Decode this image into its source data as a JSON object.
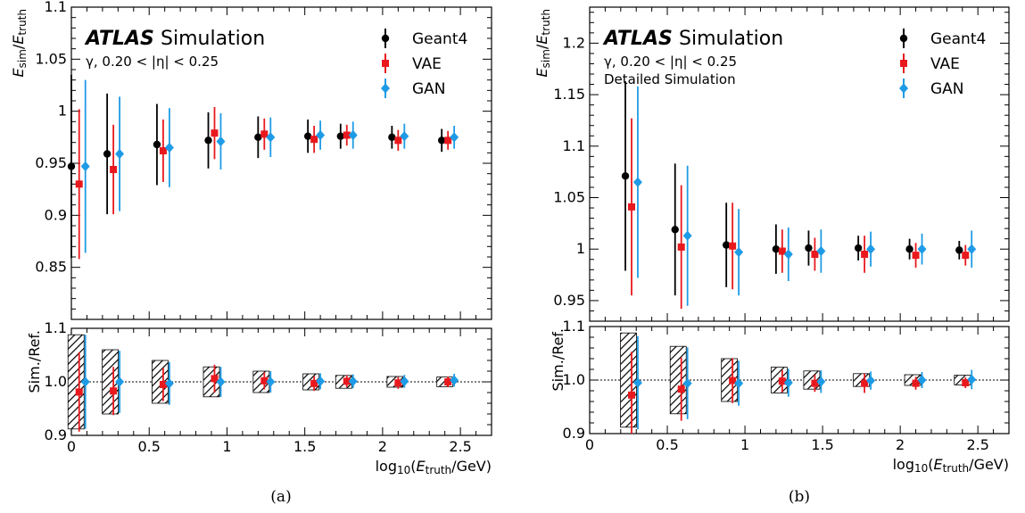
{
  "chart_data": [
    {
      "type": "scatter",
      "panel_label": "(a)",
      "atlas_label": "ATLAS",
      "atlas_suffix": "Simulation",
      "info_lines": [
        "γ, 0.20 < |η| < 0.25"
      ],
      "ylabel": "E_sim/E_truth",
      "ratio_ylabel": "Sim./Ref.",
      "xlabel": "log10(E_truth/GeV)",
      "xlim": [
        0,
        2.7
      ],
      "ylim": [
        0.8,
        1.1
      ],
      "ratio_ylim": [
        0.9,
        1.1
      ],
      "xticks": [
        0,
        0.5,
        1,
        1.5,
        2,
        2.5
      ],
      "xtick_labels": [
        "0",
        "0.5",
        "1",
        "1.5",
        "2",
        "2.5"
      ],
      "yticks": [
        0.85,
        0.9,
        0.95,
        1,
        1.05,
        1.1
      ],
      "ytick_labels": [
        "0.85",
        "0.9",
        "0.95",
        "1",
        "1.05",
        "1.1"
      ],
      "ratio_yticks": [
        0.9,
        1.0,
        1.1
      ],
      "ratio_ytick_labels": [
        "0.9",
        "1.0",
        "1.1"
      ],
      "legend_position": "top-right",
      "series": [
        {
          "name": "Geant4",
          "color": "#000000",
          "marker": "circle",
          "x": [
            0.0,
            0.23,
            0.55,
            0.88,
            1.2,
            1.52,
            1.73,
            2.06,
            2.38
          ],
          "y": [
            0.947,
            0.959,
            0.968,
            0.972,
            0.975,
            0.976,
            0.976,
            0.975,
            0.972
          ],
          "err": [
            0.088,
            0.058,
            0.039,
            0.027,
            0.02,
            0.016,
            0.012,
            0.011,
            0.011
          ]
        },
        {
          "name": "VAE",
          "color": "#e8191e",
          "marker": "square",
          "x": [
            0.05,
            0.27,
            0.59,
            0.92,
            1.24,
            1.56,
            1.77,
            2.1,
            2.42
          ],
          "y": [
            0.93,
            0.944,
            0.962,
            0.979,
            0.978,
            0.973,
            0.977,
            0.972,
            0.972
          ],
          "err": [
            0.072,
            0.043,
            0.03,
            0.025,
            0.015,
            0.013,
            0.01,
            0.01,
            0.009
          ]
        },
        {
          "name": "GAN",
          "color": "#1e9be6",
          "marker": "diamond",
          "x": [
            0.09,
            0.31,
            0.63,
            0.96,
            1.28,
            1.6,
            1.81,
            2.14,
            2.46
          ],
          "y": [
            0.947,
            0.959,
            0.965,
            0.971,
            0.975,
            0.977,
            0.977,
            0.976,
            0.975
          ],
          "err": [
            0.083,
            0.055,
            0.038,
            0.027,
            0.019,
            0.014,
            0.013,
            0.012,
            0.011
          ]
        }
      ],
      "ratio_bands": [
        {
          "x": 0.03,
          "lo": 0.912,
          "hi": 1.088
        },
        {
          "x": 0.25,
          "lo": 0.94,
          "hi": 1.06
        },
        {
          "x": 0.57,
          "lo": 0.96,
          "hi": 1.04
        },
        {
          "x": 0.9,
          "lo": 0.972,
          "hi": 1.028
        },
        {
          "x": 1.22,
          "lo": 0.98,
          "hi": 1.02
        },
        {
          "x": 1.54,
          "lo": 0.985,
          "hi": 1.015
        },
        {
          "x": 1.75,
          "lo": 0.988,
          "hi": 1.012
        },
        {
          "x": 2.08,
          "lo": 0.99,
          "hi": 1.01
        },
        {
          "x": 2.4,
          "lo": 0.991,
          "hi": 1.009
        }
      ],
      "ratio_series": [
        {
          "name": "VAE",
          "x": [
            0.05,
            0.27,
            0.59,
            0.92,
            1.24,
            1.56,
            1.77,
            2.1,
            2.42
          ],
          "y": [
            0.981,
            0.983,
            0.995,
            1.006,
            1.002,
            0.997,
            1.001,
            0.998,
            1.0
          ],
          "err": [
            0.074,
            0.045,
            0.031,
            0.026,
            0.016,
            0.014,
            0.011,
            0.011,
            0.01
          ]
        },
        {
          "name": "GAN",
          "x": [
            0.09,
            0.31,
            0.63,
            0.96,
            1.28,
            1.6,
            1.81,
            2.14,
            2.46
          ],
          "y": [
            1.0,
            1.0,
            0.997,
            1.0,
            1.0,
            1.001,
            1.001,
            1.001,
            1.003
          ],
          "err": [
            0.088,
            0.058,
            0.04,
            0.028,
            0.02,
            0.015,
            0.013,
            0.012,
            0.012
          ]
        }
      ]
    },
    {
      "type": "scatter",
      "panel_label": "(b)",
      "atlas_label": "ATLAS",
      "atlas_suffix": "Simulation",
      "info_lines": [
        "γ, 0.20 < |η| < 0.25",
        "Detailed Simulation"
      ],
      "ylabel": "E_sim/E_truth",
      "ratio_ylabel": "Sim./Ref.",
      "xlabel": "log10(E_truth/GeV)",
      "xlim": [
        0,
        2.7
      ],
      "ylim": [
        0.93,
        1.235
      ],
      "ratio_ylim": [
        0.9,
        1.1
      ],
      "xticks": [
        0,
        0.5,
        1,
        1.5,
        2,
        2.5
      ],
      "xtick_labels": [
        "0",
        "0.5",
        "1",
        "1.5",
        "2",
        "2.5"
      ],
      "yticks": [
        0.95,
        1,
        1.05,
        1.1,
        1.15,
        1.2
      ],
      "ytick_labels": [
        "0.95",
        "1",
        "1.05",
        "1.1",
        "1.15",
        "1.2"
      ],
      "ratio_yticks": [
        0.9,
        1.0,
        1.1
      ],
      "ratio_ytick_labels": [
        "0.9",
        "1.0",
        "1.1"
      ],
      "legend_position": "top-right",
      "series": [
        {
          "name": "Geant4",
          "color": "#000000",
          "marker": "circle",
          "x": [
            0.23,
            0.55,
            0.88,
            1.2,
            1.41,
            1.73,
            2.06,
            2.38
          ],
          "y": [
            1.071,
            1.019,
            1.004,
            1.0,
            1.001,
            1.001,
            1.0,
            0.999
          ],
          "err": [
            0.092,
            0.064,
            0.041,
            0.024,
            0.017,
            0.012,
            0.01,
            0.009
          ]
        },
        {
          "name": "VAE",
          "color": "#e8191e",
          "marker": "square",
          "x": [
            0.27,
            0.59,
            0.92,
            1.24,
            1.45,
            1.77,
            2.1,
            2.42
          ],
          "y": [
            1.041,
            1.002,
            1.003,
            0.998,
            0.995,
            0.995,
            0.994,
            0.994
          ],
          "err": [
            0.086,
            0.06,
            0.042,
            0.021,
            0.016,
            0.018,
            0.012,
            0.01
          ]
        },
        {
          "name": "GAN",
          "color": "#1e9be6",
          "marker": "diamond",
          "x": [
            0.31,
            0.63,
            0.96,
            1.28,
            1.49,
            1.81,
            2.14,
            2.46
          ],
          "y": [
            1.065,
            1.013,
            0.997,
            0.995,
            0.998,
            1.0,
            1.0,
            1.0
          ],
          "err": [
            0.093,
            0.068,
            0.042,
            0.026,
            0.021,
            0.017,
            0.015,
            0.018
          ]
        }
      ],
      "ratio_bands": [
        {
          "x": 0.25,
          "lo": 0.912,
          "hi": 1.088
        },
        {
          "x": 0.57,
          "lo": 0.937,
          "hi": 1.063
        },
        {
          "x": 0.9,
          "lo": 0.96,
          "hi": 1.04
        },
        {
          "x": 1.22,
          "lo": 0.976,
          "hi": 1.024
        },
        {
          "x": 1.43,
          "lo": 0.983,
          "hi": 1.017
        },
        {
          "x": 1.75,
          "lo": 0.988,
          "hi": 1.012
        },
        {
          "x": 2.08,
          "lo": 0.99,
          "hi": 1.01
        },
        {
          "x": 2.4,
          "lo": 0.991,
          "hi": 1.009
        }
      ],
      "ratio_series": [
        {
          "name": "VAE",
          "x": [
            0.27,
            0.59,
            0.92,
            1.24,
            1.45,
            1.77,
            2.1,
            2.42
          ],
          "y": [
            0.972,
            0.983,
            0.999,
            0.998,
            0.994,
            0.994,
            0.994,
            0.995
          ],
          "err": [
            0.081,
            0.059,
            0.042,
            0.021,
            0.016,
            0.018,
            0.012,
            0.01
          ]
        },
        {
          "name": "GAN",
          "x": [
            0.31,
            0.63,
            0.96,
            1.28,
            1.49,
            1.81,
            2.14,
            2.46
          ],
          "y": [
            0.995,
            0.994,
            0.994,
            0.995,
            0.997,
            0.999,
            1.0,
            1.001
          ],
          "err": [
            0.087,
            0.067,
            0.042,
            0.026,
            0.021,
            0.017,
            0.015,
            0.018
          ]
        }
      ]
    }
  ]
}
